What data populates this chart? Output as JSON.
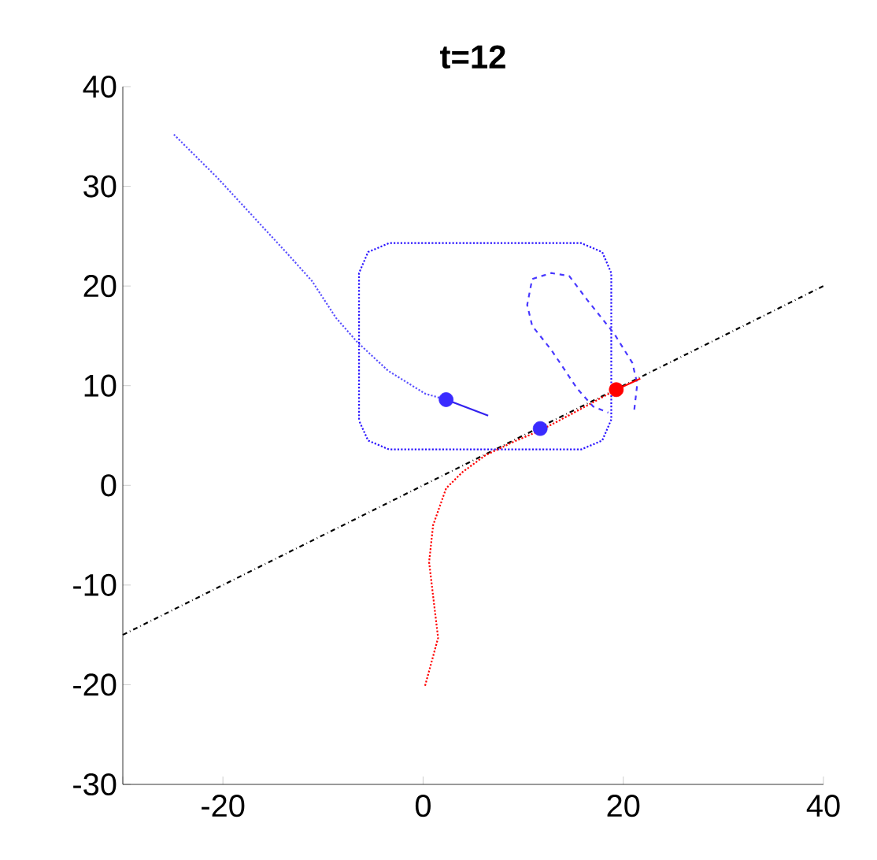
{
  "chart_data": {
    "type": "line",
    "title": "t=12",
    "xlim": [
      -30,
      40
    ],
    "ylim": [
      -30,
      40
    ],
    "xticks": [
      {
        "value": -30,
        "label": null
      },
      -20,
      0,
      20,
      40
    ],
    "yticks": [
      -30,
      -20,
      -10,
      0,
      10,
      20,
      30,
      40
    ],
    "grid": false,
    "series": [
      {
        "line_style": "dashed",
        "color": "#000000",
        "x": [
          -30,
          40
        ],
        "values": [
          -15,
          20
        ]
      },
      {
        "line_style": "dotted",
        "color": "#5a50ff",
        "x": [
          -24.9,
          -20.5,
          -17.1,
          -13.7,
          -11.1,
          -8.7,
          -6.6,
          -3.5,
          0.2,
          2.3
        ],
        "values": [
          35.2,
          30.8,
          27.1,
          23.4,
          20.5,
          16.8,
          14.4,
          11.5,
          9.2,
          8.6
        ]
      },
      {
        "line_style": "dotted",
        "color": "#2a14ff",
        "x": [
          -6.4,
          -6.4,
          -5.5,
          -3.4,
          15.8,
          17.9,
          18.8,
          18.8,
          17.9,
          15.8,
          -3.4,
          -5.5,
          -6.4
        ],
        "values": [
          6.6,
          21.3,
          23.4,
          24.3,
          24.3,
          23.4,
          21.3,
          6.6,
          4.5,
          3.6,
          3.6,
          4.5,
          6.5
        ]
      },
      {
        "line_style": "dashed",
        "color": "#4838ff",
        "x": [
          21.1,
          21.4,
          20.9,
          19.1,
          16.4,
          14.6,
          12.8,
          10.9,
          10.4,
          10.9,
          12.8,
          15.4,
          17.0,
          18.5
        ],
        "values": [
          7.6,
          10.2,
          12.3,
          15.2,
          18.6,
          21.0,
          21.3,
          20.7,
          18.1,
          16.0,
          13.6,
          9.7,
          7.9,
          7.3
        ]
      },
      {
        "line_style": "dotted",
        "color": "#ff0000",
        "x": [
          0.2,
          1.5,
          1.0,
          0.6,
          1.0,
          2.3,
          3.9,
          6.2,
          9.1,
          11.7,
          14.9,
          19.3
        ],
        "values": [
          -20.1,
          -15.3,
          -11.1,
          -7.7,
          -4.0,
          -0.3,
          1.3,
          3.0,
          4.4,
          5.5,
          7.2,
          9.6
        ]
      },
      {
        "line_style": "solid",
        "color": "#3322ee",
        "x": [
          2.3,
          6.5
        ],
        "values": [
          8.6,
          7.0
        ]
      },
      {
        "line_style": "solid",
        "color": "#ff0000",
        "x": [
          19.3,
          21.7
        ],
        "values": [
          9.6,
          10.7
        ]
      },
      {
        "type": "scatter",
        "marker": "circle",
        "color": "#3a2bff",
        "x": [
          2.3
        ],
        "values": [
          8.6
        ]
      },
      {
        "type": "scatter",
        "marker": "circle",
        "color": "#3a2bff",
        "x": [
          11.7
        ],
        "values": [
          5.7
        ]
      },
      {
        "type": "scatter",
        "marker": "circle",
        "color": "#ff0000",
        "x": [
          19.3
        ],
        "values": [
          9.6
        ]
      }
    ]
  }
}
